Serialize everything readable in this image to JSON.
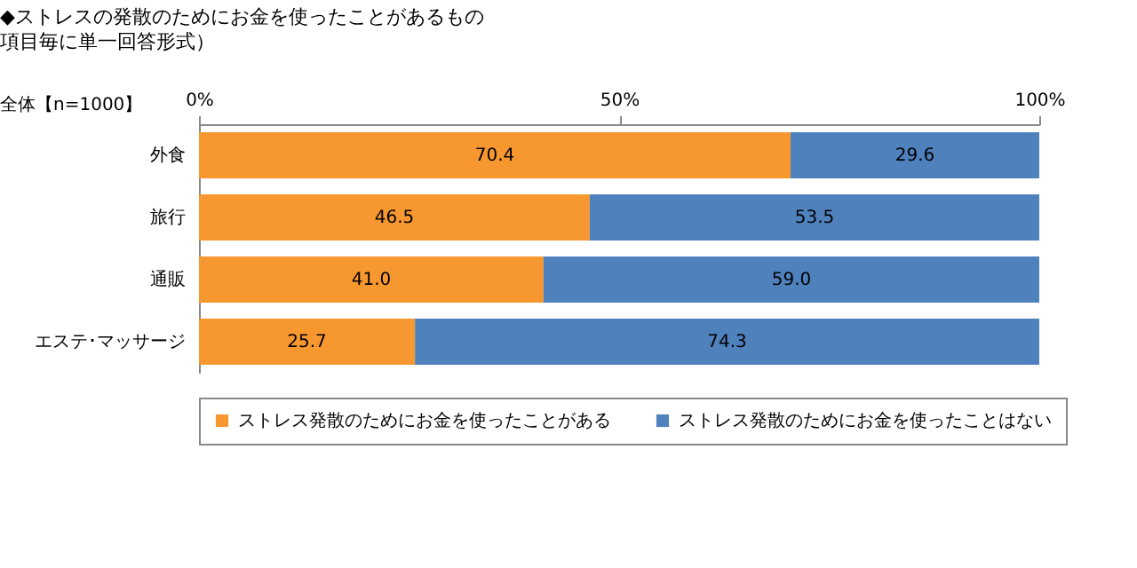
{
  "chart_data": {
    "type": "bar",
    "orientation": "horizontal",
    "stacked": true,
    "title": "◆ストレスの発散のためにお金を使ったことがあるもの",
    "subtitle": "項目毎に単一回答形式）",
    "annotations": [
      "全体【n=1000】"
    ],
    "categories": [
      "外食",
      "旅行",
      "通販",
      "エステ･マッサージ"
    ],
    "series": [
      {
        "name": "ストレス発散のためにお金を使ったことがある",
        "color": "#f7972f",
        "values": [
          70.4,
          46.5,
          41.0,
          25.7
        ],
        "value_labels": [
          "70.4",
          "46.5",
          "41.0",
          "25.7"
        ]
      },
      {
        "name": "ストレス発散のためにお金を使ったことはない",
        "color": "#4f81bd",
        "values": [
          29.6,
          53.5,
          59.0,
          74.3
        ],
        "value_labels": [
          "29.6",
          "53.5",
          "59.0",
          "74.3"
        ]
      }
    ],
    "xlim": [
      0,
      100
    ],
    "xticks": [
      {
        "value": 0,
        "label": "0%"
      },
      {
        "value": 50,
        "label": "50%"
      },
      {
        "value": 100,
        "label": "100%"
      }
    ],
    "legend": "bottom"
  }
}
